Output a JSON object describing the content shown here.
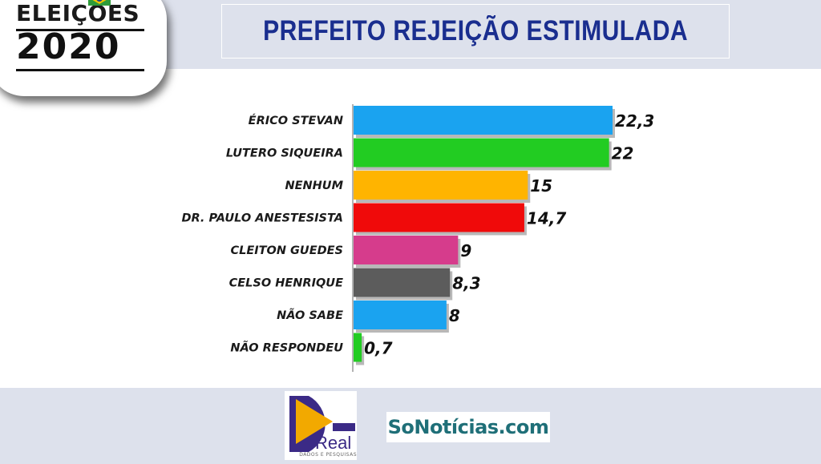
{
  "badge": {
    "line1": "ELEIÇÕES",
    "line2": "2020",
    "flag_colors": {
      "green": "#2e9b3a",
      "yellow": "#f2c500",
      "blue": "#1b3f8f"
    }
  },
  "chart_data": {
    "type": "bar",
    "orientation": "horizontal",
    "title": "PREFEITO REJEIÇÃO ESTIMULADA",
    "categories": [
      "ÉRICO STEVAN",
      "LUTERO SIQUEIRA",
      "NENHUM",
      "DR. PAULO ANESTESISTA",
      "CLEITON GUEDES",
      "CELSO HENRIQUE",
      "NÃO SABE",
      "NÃO RESPONDEU"
    ],
    "values": [
      22.3,
      22,
      15,
      14.7,
      9,
      8.3,
      8,
      0.7
    ],
    "value_labels": [
      "22,3",
      "22",
      "15",
      "14,7",
      "9",
      "8,3",
      "8",
      "0,7"
    ],
    "colors": [
      "#1aa3f0",
      "#22cc22",
      "#ffb400",
      "#f00a0a",
      "#d63c8c",
      "#5c5c5c",
      "#1aa3f0",
      "#22cc22"
    ],
    "xlim": [
      0,
      22.3
    ],
    "grid": false,
    "legend": "none"
  },
  "logos": {
    "real_word": "Real",
    "real_sub": "DADOS E PESQUISAS",
    "real_colors": {
      "purple": "#3b2a86",
      "gold": "#f2a900"
    },
    "sonoticias_text": "SoNotícias.com"
  }
}
